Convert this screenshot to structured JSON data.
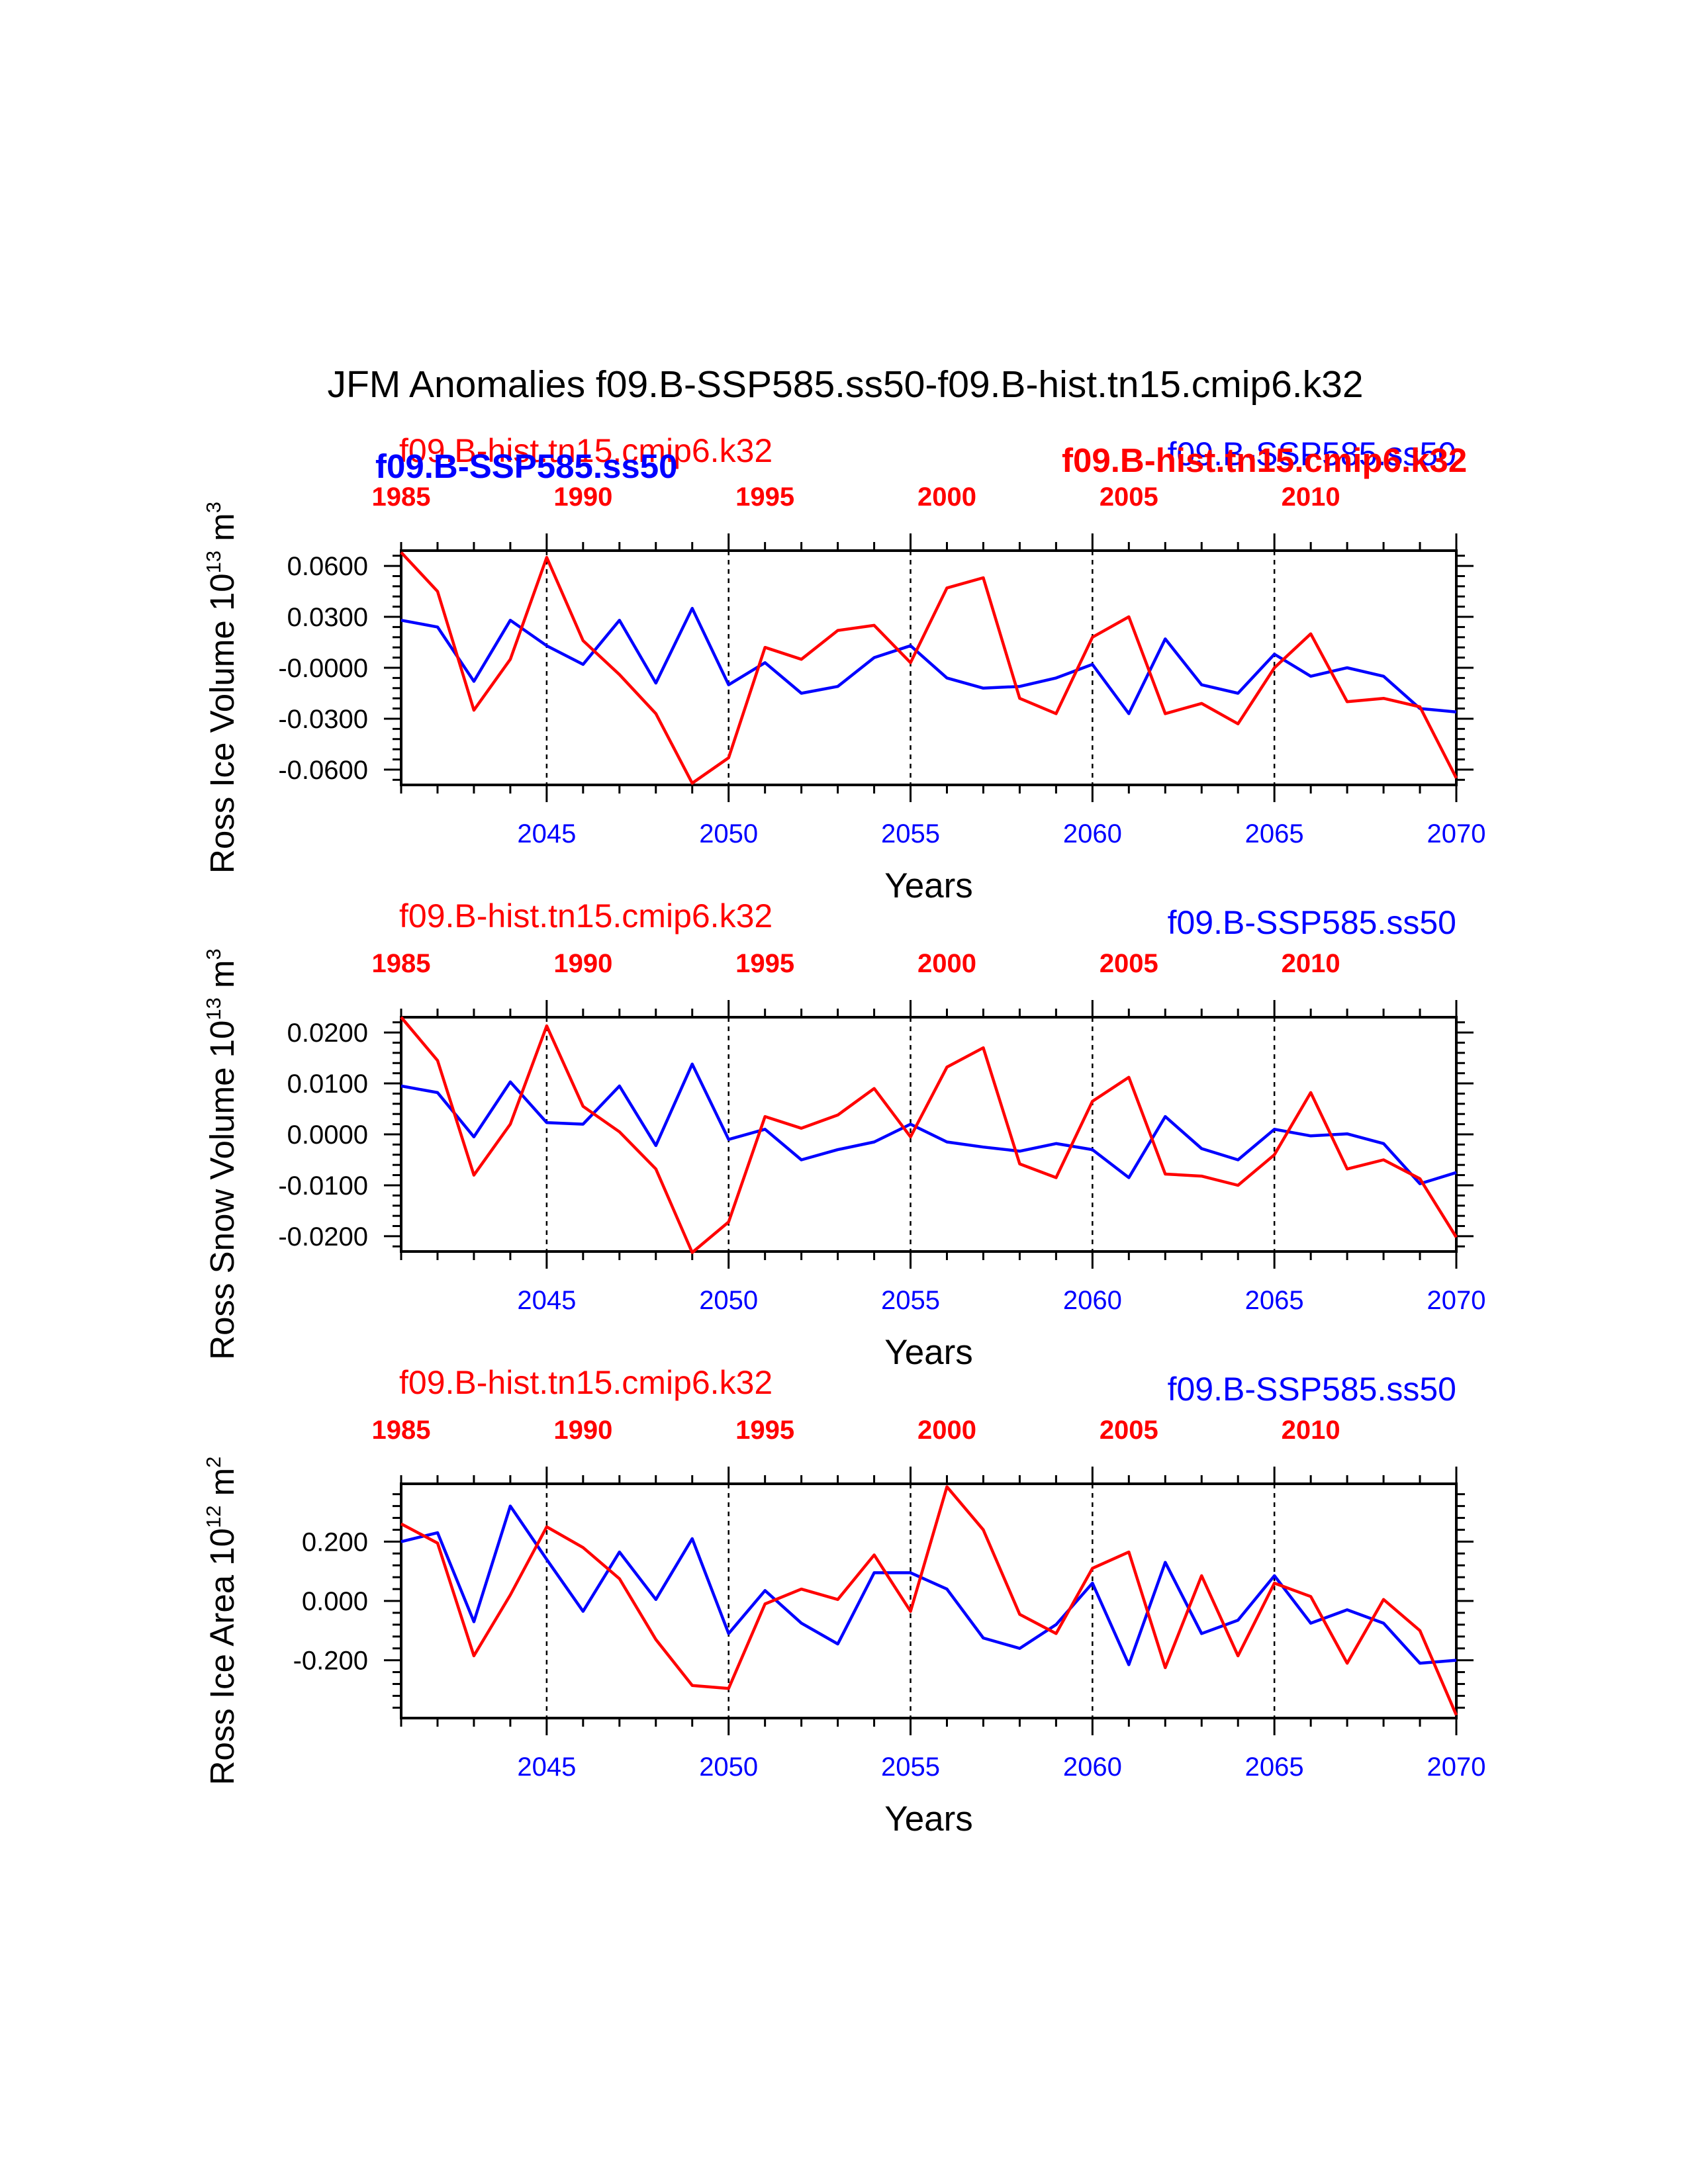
{
  "title": "JFM Anomalies f09.B-SSP585.ss50-f09.B-hist.tn15.cmip6.k32",
  "colors": {
    "ssp": "#0000ff",
    "hist": "#ff0000",
    "axis": "#000000"
  },
  "top_labels": {
    "hist_small": "f09.B-hist.tn15.cmip6.k32",
    "ssp_small": "f09.B-SSP585.ss50",
    "ssp_bold": "f09.B-SSP585.ss50",
    "hist_bold": "f09.B-hist.tn15.cmip6.k32"
  },
  "chart_data": [
    {
      "type": "line",
      "ylabel_main": "Ross Ice Volume 10",
      "ylabel_exp": "13",
      "ylabel_unit": " m",
      "ylabel_unit_exp": "3",
      "xlabel": "Years",
      "ylim": [
        -0.069,
        0.069
      ],
      "yticks": [
        0.06,
        0.03,
        0.0,
        -0.03,
        -0.06
      ],
      "ytick_labels": [
        "0.0600",
        "0.0300",
        "-0.0000",
        "-0.0300",
        "-0.0600"
      ],
      "x_bottom_ticks": [
        "2045",
        "2050",
        "2055",
        "2060",
        "2065",
        "2070"
      ],
      "x_top_ticks": [
        "1985",
        "1990",
        "1995",
        "2000",
        "2005",
        "2010"
      ],
      "series": [
        {
          "name": "f09.B-SSP585.ss50",
          "color": "#0000ff",
          "x": [
            2041,
            2042,
            2043,
            2044,
            2045,
            2046,
            2047,
            2048,
            2049,
            2050,
            2051,
            2052,
            2053,
            2054,
            2055,
            2056,
            2057,
            2058,
            2059,
            2060,
            2061,
            2062,
            2063,
            2064,
            2065,
            2066,
            2067,
            2068,
            2069,
            2070
          ],
          "values": [
            0.028,
            0.024,
            -0.008,
            0.028,
            0.013,
            0.002,
            0.028,
            -0.009,
            0.035,
            -0.01,
            0.003,
            -0.015,
            -0.011,
            0.006,
            0.013,
            -0.006,
            -0.012,
            -0.011,
            -0.006,
            0.002,
            -0.027,
            0.017,
            -0.01,
            -0.015,
            0.008,
            -0.005,
            0.0,
            -0.005,
            -0.024,
            -0.026
          ]
        },
        {
          "name": "f09.B-hist.tn15.cmip6.k32",
          "color": "#ff0000",
          "x": [
            1985,
            1986,
            1987,
            1988,
            1989,
            1990,
            1991,
            1992,
            1993,
            1994,
            1995,
            1996,
            1997,
            1998,
            1999,
            2000,
            2001,
            2002,
            2003,
            2004,
            2005,
            2006,
            2007,
            2008,
            2009,
            2010,
            2011,
            2012,
            2013,
            2014
          ],
          "values": [
            0.068,
            0.045,
            -0.025,
            0.005,
            0.065,
            0.016,
            -0.004,
            -0.027,
            -0.068,
            -0.053,
            0.012,
            0.005,
            0.022,
            0.025,
            0.003,
            0.047,
            0.053,
            -0.018,
            -0.027,
            0.018,
            0.03,
            -0.027,
            -0.021,
            -0.033,
            0.0,
            0.02,
            -0.02,
            -0.018,
            -0.023,
            -0.065
          ]
        }
      ]
    },
    {
      "type": "line",
      "ylabel_main": "Ross Snow Volume 10",
      "ylabel_exp": "13",
      "ylabel_unit": " m",
      "ylabel_unit_exp": "3",
      "xlabel": "Years",
      "ylim": [
        -0.023,
        0.023
      ],
      "yticks": [
        0.02,
        0.01,
        0.0,
        -0.01,
        -0.02
      ],
      "ytick_labels": [
        "0.0200",
        "0.0100",
        "0.0000",
        "-0.0100",
        "-0.0200"
      ],
      "x_bottom_ticks": [
        "2045",
        "2050",
        "2055",
        "2060",
        "2065",
        "2070"
      ],
      "x_top_ticks": [
        "1985",
        "1990",
        "1995",
        "2000",
        "2005",
        "2010"
      ],
      "series": [
        {
          "name": "f09.B-SSP585.ss50",
          "color": "#0000ff",
          "x": [
            2041,
            2042,
            2043,
            2044,
            2045,
            2046,
            2047,
            2048,
            2049,
            2050,
            2051,
            2052,
            2053,
            2054,
            2055,
            2056,
            2057,
            2058,
            2059,
            2060,
            2061,
            2062,
            2063,
            2064,
            2065,
            2066,
            2067,
            2068,
            2069,
            2070
          ],
          "values": [
            0.0095,
            0.0082,
            -0.0005,
            0.0103,
            0.0023,
            0.002,
            0.0095,
            -0.0022,
            0.0138,
            -0.001,
            0.001,
            -0.005,
            -0.003,
            -0.0015,
            0.002,
            -0.0015,
            -0.0025,
            -0.0033,
            -0.0018,
            -0.003,
            -0.0085,
            0.0035,
            -0.0028,
            -0.005,
            0.001,
            -0.0003,
            0.0001,
            -0.0018,
            -0.0097,
            -0.0075
          ]
        },
        {
          "name": "f09.B-hist.tn15.cmip6.k32",
          "color": "#ff0000",
          "x": [
            1985,
            1986,
            1987,
            1988,
            1989,
            1990,
            1991,
            1992,
            1993,
            1994,
            1995,
            1996,
            1997,
            1998,
            1999,
            2000,
            2001,
            2002,
            2003,
            2004,
            2005,
            2006,
            2007,
            2008,
            2009,
            2010,
            2011,
            2012,
            2013,
            2014
          ],
          "values": [
            0.023,
            0.0145,
            -0.008,
            0.002,
            0.0213,
            0.0055,
            0.0005,
            -0.0068,
            -0.0232,
            -0.0172,
            0.0035,
            0.0012,
            0.0038,
            0.009,
            -0.0005,
            0.0132,
            0.017,
            -0.0058,
            -0.0085,
            0.0065,
            0.0112,
            -0.0078,
            -0.0082,
            -0.01,
            -0.004,
            0.0082,
            -0.0068,
            -0.005,
            -0.0087,
            -0.0202
          ]
        }
      ]
    },
    {
      "type": "line",
      "ylabel_main": "Ross Ice Area 10",
      "ylabel_exp": "12",
      "ylabel_unit": " m",
      "ylabel_unit_exp": "2",
      "xlabel": "Years",
      "ylim": [
        -0.395,
        0.395
      ],
      "yticks": [
        0.2,
        0.0,
        -0.2
      ],
      "ytick_labels": [
        "0.200",
        "0.000",
        "-0.200"
      ],
      "x_bottom_ticks": [
        "2045",
        "2050",
        "2055",
        "2060",
        "2065",
        "2070"
      ],
      "x_top_ticks": [
        "1985",
        "1990",
        "1995",
        "2000",
        "2005",
        "2010"
      ],
      "series": [
        {
          "name": "f09.B-SSP585.ss50",
          "color": "#0000ff",
          "x": [
            2041,
            2042,
            2043,
            2044,
            2045,
            2046,
            2047,
            2048,
            2049,
            2050,
            2051,
            2052,
            2053,
            2054,
            2055,
            2056,
            2057,
            2058,
            2059,
            2060,
            2061,
            2062,
            2063,
            2064,
            2065,
            2066,
            2067,
            2068,
            2069,
            2070
          ],
          "values": [
            0.2,
            0.23,
            -0.07,
            0.32,
            0.14,
            -0.035,
            0.165,
            0.005,
            0.21,
            -0.11,
            0.035,
            -0.075,
            -0.145,
            0.095,
            0.095,
            0.04,
            -0.125,
            -0.16,
            -0.08,
            0.06,
            -0.215,
            0.13,
            -0.11,
            -0.065,
            0.085,
            -0.075,
            -0.03,
            -0.075,
            -0.21,
            -0.2
          ]
        },
        {
          "name": "f09.B-hist.tn15.cmip6.k32",
          "color": "#ff0000",
          "x": [
            1985,
            1986,
            1987,
            1988,
            1989,
            1990,
            1991,
            1992,
            1993,
            1994,
            1995,
            1996,
            1997,
            1998,
            1999,
            2000,
            2001,
            2002,
            2003,
            2004,
            2005,
            2006,
            2007,
            2008,
            2009,
            2010,
            2011,
            2012,
            2013,
            2014
          ],
          "values": [
            0.26,
            0.195,
            -0.185,
            0.02,
            0.25,
            0.18,
            0.075,
            -0.13,
            -0.285,
            -0.295,
            -0.01,
            0.04,
            0.005,
            0.155,
            -0.035,
            0.385,
            0.24,
            -0.045,
            -0.11,
            0.11,
            0.165,
            -0.225,
            0.085,
            -0.185,
            0.06,
            0.015,
            -0.21,
            0.005,
            -0.1,
            -0.385
          ]
        }
      ]
    }
  ]
}
